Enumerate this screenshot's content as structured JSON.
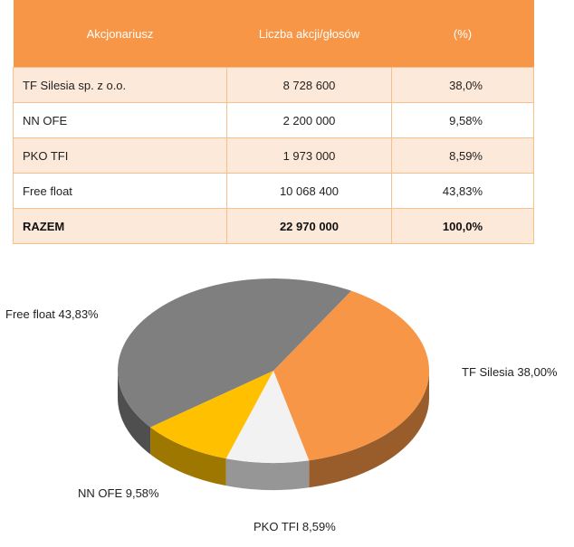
{
  "table": {
    "headers": [
      "Akcjonariusz",
      "Liczba akcji/głosów",
      "(%)"
    ],
    "rows": [
      {
        "name": "TF Silesia sp. z o.o.",
        "shares": "8 728 600",
        "pct": "38,0%"
      },
      {
        "name": "NN OFE",
        "shares": "2 200 000",
        "pct": "9,58%"
      },
      {
        "name": "PKO TFI",
        "shares": "1 973 000",
        "pct": "8,59%"
      },
      {
        "name": "Free float",
        "shares": "10  068 400",
        "pct": "43,83%"
      }
    ],
    "total": {
      "name": "RAZEM",
      "shares": "22 970 000",
      "pct": "100,0%"
    }
  },
  "chart_data": {
    "type": "pie",
    "style": "3d",
    "slices": [
      {
        "label": "TF Silesia 38,00%",
        "value": 38.0,
        "color": "#f79646"
      },
      {
        "label": "PKO TFI 8,59%",
        "value": 8.59,
        "color": "#f2f2f2"
      },
      {
        "label": "NN OFE 9,58%",
        "value": 9.58,
        "color": "#ffc000"
      },
      {
        "label": "Free float 43,83%",
        "value": 43.83,
        "color": "#7f7f7f"
      }
    ]
  }
}
